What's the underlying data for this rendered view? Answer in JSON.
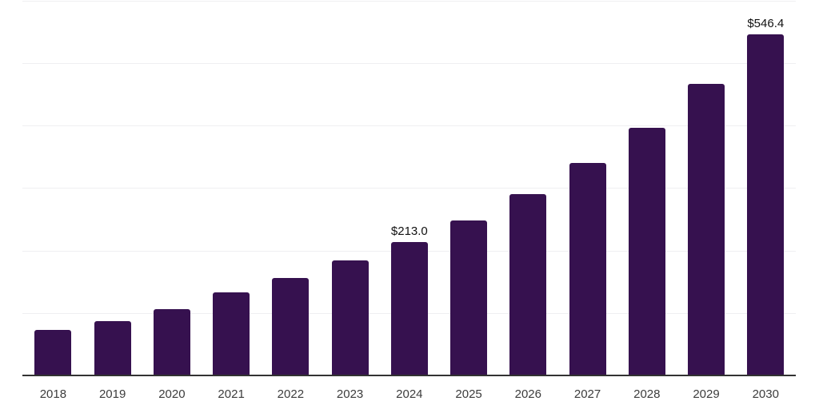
{
  "colors": {
    "bar": "#36114f",
    "axis_line": "#323232",
    "gridline": "#efeff1",
    "tick_label": "#3c3c3c",
    "value_label": "#111111",
    "background": "#ffffff"
  },
  "chart_data": {
    "type": "bar",
    "categories": [
      "2018",
      "2019",
      "2020",
      "2021",
      "2022",
      "2023",
      "2024",
      "2025",
      "2026",
      "2027",
      "2028",
      "2029",
      "2030"
    ],
    "values": [
      72.5,
      87.0,
      106.0,
      132.7,
      155.5,
      184.0,
      213.0,
      248.5,
      290.5,
      340.0,
      396.0,
      466.5,
      546.4
    ],
    "annotations": [
      {
        "category": "2024",
        "text": "$213.0"
      },
      {
        "category": "2030",
        "text": "$546.4"
      }
    ],
    "title": "",
    "xlabel": "",
    "ylabel": "",
    "ylim": [
      0,
      600
    ],
    "gridline_step": 100,
    "grid": "horizontal",
    "legend": "none",
    "y_axis_labels_visible": false,
    "value_format_prefix": "$"
  }
}
